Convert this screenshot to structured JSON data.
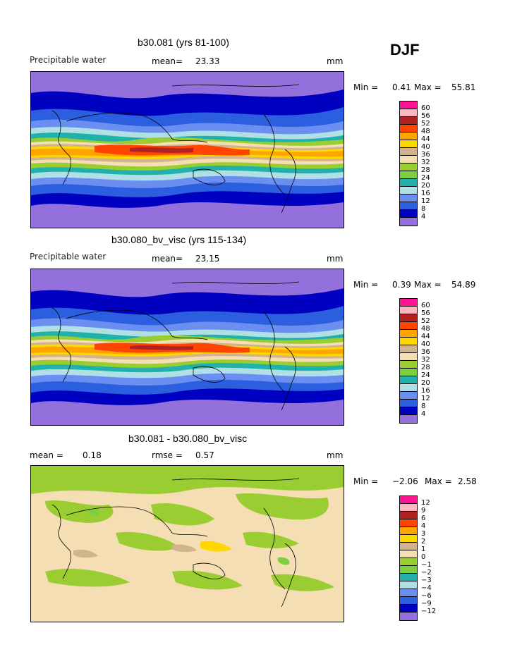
{
  "season": "DJF",
  "colors": {
    "c4": "#9370db",
    "c8": "#0000c0",
    "c12": "#2c5fe0",
    "c16": "#6b8ff0",
    "c20": "#b0e0e6",
    "c24": "#20b2aa",
    "c28": "#7cd040",
    "c32": "#9acd32",
    "c36": "#f5deb3",
    "c40": "#d2b48c",
    "c44": "#ffd700",
    "c48": "#ffa500",
    "c52": "#ff4500",
    "c56": "#b22222",
    "c60": "#ffb6c1",
    "c64": "#ff1493"
  },
  "panels": [
    {
      "title": "b30.081 (yrs 81-100)",
      "left_label": "Precipitable water",
      "mean_label": "mean=",
      "mean_value": "23.33",
      "units": "mm",
      "min_text": "Min =",
      "min_value": "0.41",
      "max_text": "Max =",
      "max_value": "55.81",
      "legend_ticks": [
        "60",
        "56",
        "52",
        "48",
        "44",
        "40",
        "36",
        "32",
        "28",
        "24",
        "20",
        "16",
        "12",
        "8",
        "4"
      ]
    },
    {
      "title": "b30.080_bv_visc (yrs 115-134)",
      "left_label": "Precipitable water",
      "mean_label": "mean=",
      "mean_value": "23.15",
      "units": "mm",
      "min_text": "Min =",
      "min_value": "0.39",
      "max_text": "Max =",
      "max_value": "54.89",
      "legend_ticks": [
        "60",
        "56",
        "52",
        "48",
        "44",
        "40",
        "36",
        "32",
        "28",
        "24",
        "20",
        "16",
        "12",
        "8",
        "4"
      ]
    },
    {
      "title": "b30.081 - b30.080_bv_visc",
      "left_label": "mean =",
      "mean_label": "rmse =",
      "mean_value": "0.57",
      "left_value": "0.18",
      "units": "mm",
      "min_text": "Min =",
      "min_value": "−2.06",
      "max_text": "Max =",
      "max_value": "2.58",
      "legend_ticks": [
        "12",
        "9",
        "6",
        "4",
        "3",
        "2",
        "1",
        "0",
        "−1",
        "−2",
        "−3",
        "−4",
        "−6",
        "−9",
        "−12"
      ]
    }
  ]
}
